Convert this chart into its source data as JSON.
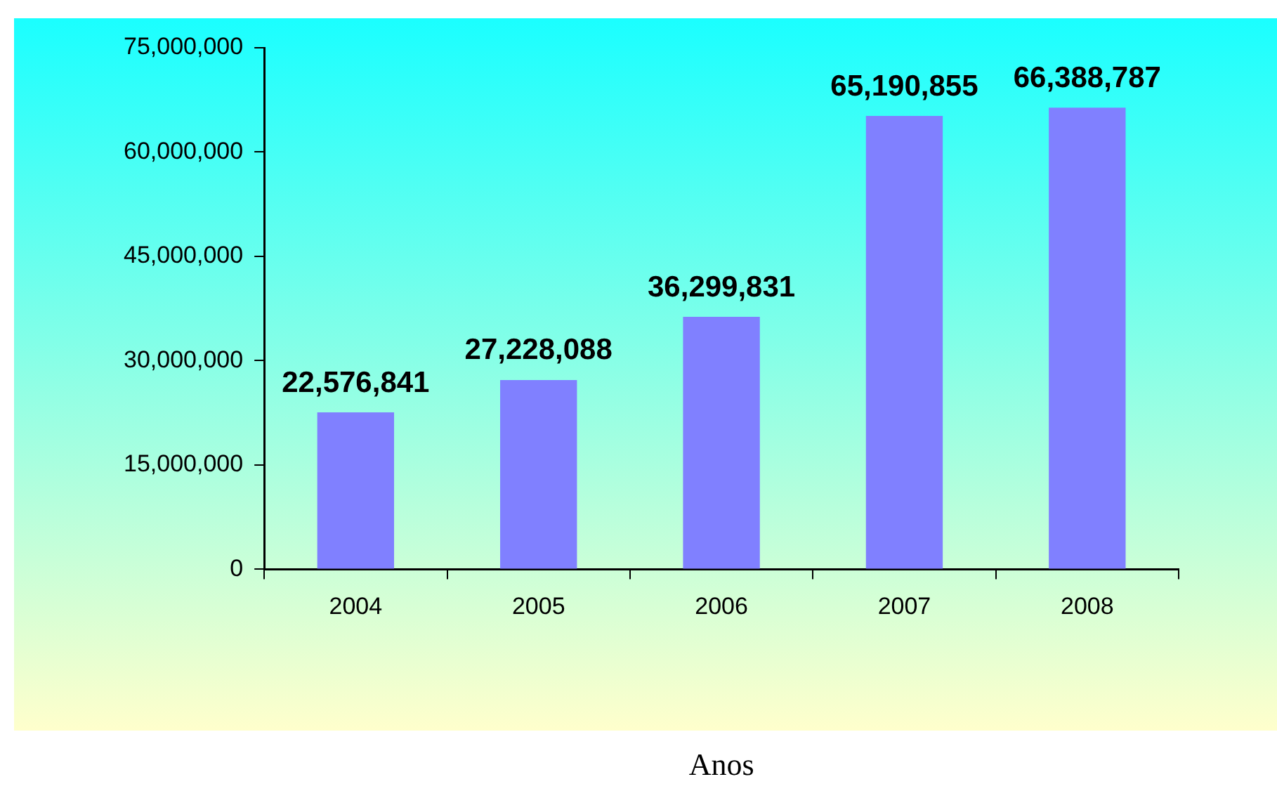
{
  "chart_data": {
    "type": "bar",
    "xlabel": "Anos",
    "categories": [
      "2004",
      "2005",
      "2006",
      "2007",
      "2008"
    ],
    "values": [
      22576841,
      27228088,
      36299831,
      65190855,
      66388787
    ],
    "value_labels": [
      "22,576,841",
      "27,228,088",
      "36,299,831",
      "65,190,855",
      "66,388,787"
    ],
    "color": "#8080ff",
    "ylim": [
      0,
      75000000
    ],
    "yticks": [
      {
        "value": 0,
        "label": "0"
      },
      {
        "value": 15000000,
        "label": "15,000,000"
      },
      {
        "value": 30000000,
        "label": "30,000,000"
      },
      {
        "value": 45000000,
        "label": "45,000,000"
      },
      {
        "value": 60000000,
        "label": "60,000,000"
      },
      {
        "value": 75000000,
        "label": "75,000,000"
      }
    ],
    "grid": false,
    "legend": false
  }
}
